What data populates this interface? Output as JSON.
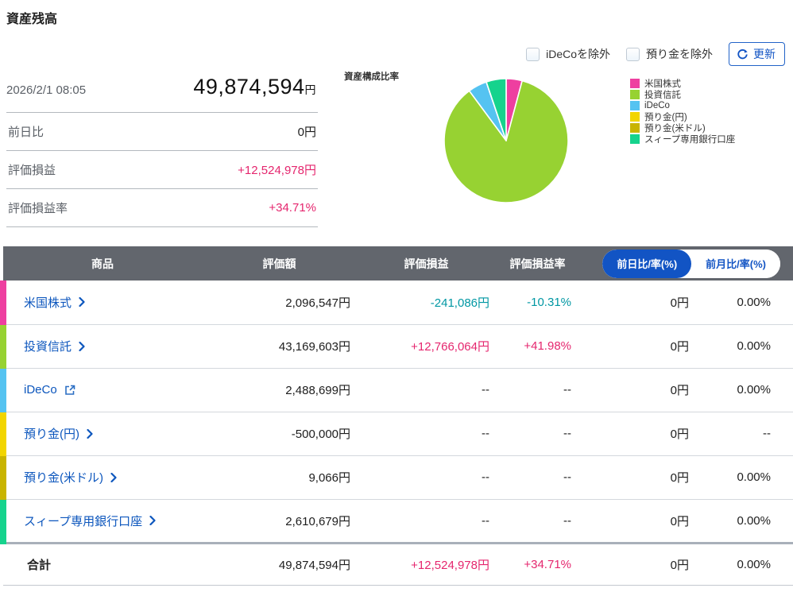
{
  "page_title": "資産残高",
  "controls": {
    "checkboxes": [
      {
        "label": "iDeCoを除外",
        "checked": false
      },
      {
        "label": "預り金を除外",
        "checked": false
      }
    ],
    "refresh_label": "更新"
  },
  "summary": {
    "timestamp": "2026/2/1 08:05",
    "total_value": "49,874,594",
    "total_unit": "円",
    "rows": [
      {
        "label": "前日比",
        "value": "0円",
        "tone": "neutral"
      },
      {
        "label": "評価損益",
        "value": "+12,524,978円",
        "tone": "pos"
      },
      {
        "label": "評価損益率",
        "value": "+34.71%",
        "tone": "pos"
      }
    ]
  },
  "chart_data": {
    "type": "pie",
    "title": "資産構成比率",
    "legend_position": "right",
    "categories": [
      "米国株式",
      "投資信託",
      "iDeCo",
      "預り金(円)",
      "預り金(米ドル)",
      "スィープ専用銀行口座"
    ],
    "values": [
      2096547,
      43169603,
      2488699,
      -500000,
      9066,
      2610679
    ],
    "colors": [
      "#ee3fa0",
      "#97d232",
      "#55c3f1",
      "#f2d500",
      "#c9b400",
      "#16d38d"
    ]
  },
  "table": {
    "headers": {
      "product": "商品",
      "valuation": "評価額",
      "pl": "評価損益",
      "pl_rate": "評価損益率"
    },
    "toggle": {
      "day": "前日比/率(%)",
      "month": "前月比/率(%)",
      "selected": "day"
    },
    "rows": [
      {
        "product": "米国株式",
        "icon": "chevron",
        "strip": "#ee3fa0",
        "valuation": "2,096,547円",
        "pl": "-241,086円",
        "pl_tone": "neg",
        "pl_rate": "-10.31%",
        "pl_rate_tone": "neg",
        "day": "0円",
        "month": "0.00%"
      },
      {
        "product": "投資信託",
        "icon": "chevron",
        "strip": "#97d232",
        "valuation": "43,169,603円",
        "pl": "+12,766,064円",
        "pl_tone": "pos",
        "pl_rate": "+41.98%",
        "pl_rate_tone": "pos",
        "day": "0円",
        "month": "0.00%"
      },
      {
        "product": "iDeCo",
        "icon": "external",
        "strip": "#55c3f1",
        "valuation": "2,488,699円",
        "pl": "--",
        "pl_tone": "neutral",
        "pl_rate": "--",
        "pl_rate_tone": "neutral",
        "day": "0円",
        "month": "0.00%"
      },
      {
        "product": "預り金(円)",
        "icon": "chevron",
        "strip": "#f2d500",
        "valuation": "-500,000円",
        "pl": "--",
        "pl_tone": "neutral",
        "pl_rate": "--",
        "pl_rate_tone": "neutral",
        "day": "0円",
        "month": "--"
      },
      {
        "product": "預り金(米ドル)",
        "icon": "chevron",
        "strip": "#c9b400",
        "valuation": "9,066円",
        "pl": "--",
        "pl_tone": "neutral",
        "pl_rate": "--",
        "pl_rate_tone": "neutral",
        "day": "0円",
        "month": "0.00%"
      },
      {
        "product": "スィープ専用銀行口座",
        "icon": "chevron",
        "strip": "#16d38d",
        "valuation": "2,610,679円",
        "pl": "--",
        "pl_tone": "neutral",
        "pl_rate": "--",
        "pl_rate_tone": "neutral",
        "day": "0円",
        "month": "0.00%"
      }
    ],
    "total": {
      "label": "合計",
      "valuation": "49,874,594円",
      "pl": "+12,524,978円",
      "pl_tone": "pos",
      "pl_rate": "+34.71%",
      "pl_rate_tone": "pos",
      "day": "0円",
      "month": "0.00%"
    }
  },
  "colors": {
    "positive": "#e5266e",
    "negative": "#0097a3",
    "link_blue": "#0c56bd",
    "accent_blue": "#1254c4",
    "table_header_bg": "#62666d"
  }
}
